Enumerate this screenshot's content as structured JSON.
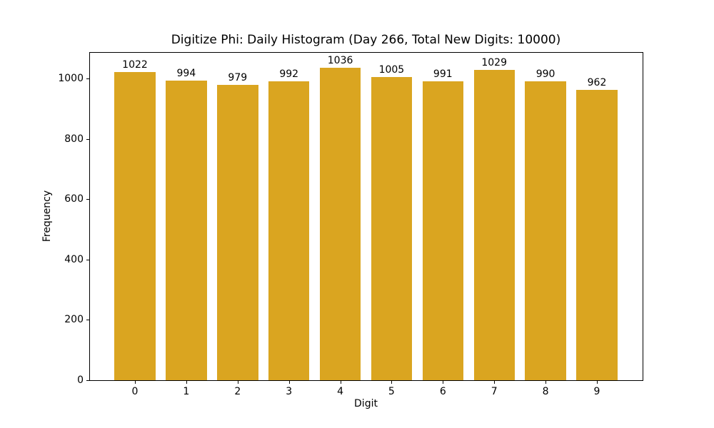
{
  "figure": {
    "background": "#ffffff",
    "axes_color": "#000000"
  },
  "chart_data": {
    "type": "bar",
    "title": "Digitize Phi: Daily Histogram (Day 266, Total New Digits: 10000)",
    "xlabel": "Digit",
    "ylabel": "Frequency",
    "categories": [
      "0",
      "1",
      "2",
      "3",
      "4",
      "5",
      "6",
      "7",
      "8",
      "9"
    ],
    "values": [
      1022,
      994,
      979,
      992,
      1036,
      1005,
      991,
      1029,
      990,
      962
    ],
    "value_labels": [
      "1022",
      "994",
      "979",
      "992",
      "1036",
      "1005",
      "991",
      "1029",
      "990",
      "962"
    ],
    "yticks": [
      0,
      200,
      400,
      600,
      800,
      1000
    ],
    "ylim": [
      0,
      1088
    ],
    "xlim": [
      -0.89,
      9.89
    ],
    "bar_width": 0.8,
    "bar_color": "#DAA520",
    "grid": false,
    "legend": null
  }
}
